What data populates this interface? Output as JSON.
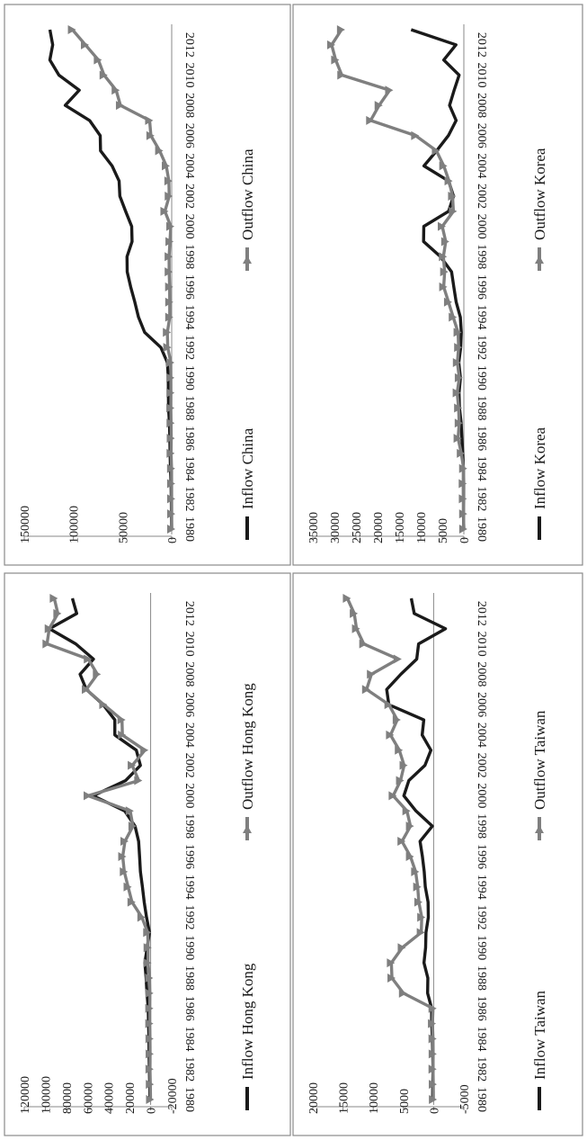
{
  "colors": {
    "inflow": "#1a1a1a",
    "outflow": "#7f7f7f",
    "frame": "#8a8a8a"
  },
  "chart_data": [
    {
      "id": "china",
      "type": "line",
      "rotation": "90deg clockwise (page viewed sideways)",
      "x": [
        "1980",
        "1981",
        "1982",
        "1983",
        "1984",
        "1985",
        "1986",
        "1987",
        "1988",
        "1989",
        "1990",
        "1991",
        "1992",
        "1993",
        "1994",
        "1995",
        "1996",
        "1997",
        "1998",
        "1999",
        "2000",
        "2001",
        "2002",
        "2003",
        "2004",
        "2005",
        "2006",
        "2007",
        "2008",
        "2009",
        "2010",
        "2011",
        "2012",
        "2013"
      ],
      "x_ticks": [
        "1980",
        "1982",
        "1984",
        "1986",
        "1988",
        "1990",
        "1992",
        "1994",
        "1996",
        "1998",
        "2000",
        "2002",
        "2004",
        "2006",
        "2008",
        "2010",
        "2012"
      ],
      "ylim": [
        0,
        150000
      ],
      "y_ticks": [
        "0",
        "50000",
        "100000",
        "150000"
      ],
      "series": [
        {
          "name": "Inflow China",
          "marker": "none",
          "values": [
            57,
            265,
            430,
            636,
            1258,
            1659,
            1875,
            2314,
            3194,
            3393,
            3487,
            4366,
            11008,
            27515,
            33767,
            37521,
            41726,
            45257,
            45463,
            40319,
            40715,
            46878,
            52743,
            53505,
            60630,
            72406,
            72715,
            83521,
            108312,
            94065,
            114734,
            123985,
            121080,
            123911
          ]
        },
        {
          "name": "Outflow China",
          "marker": "triangle",
          "values": [
            0,
            0,
            44,
            93,
            134,
            629,
            450,
            645,
            850,
            780,
            830,
            913,
            4000,
            4400,
            2000,
            2000,
            2114,
            2563,
            2634,
            1775,
            916,
            6885,
            2518,
            2855,
            5498,
            12261,
            21160,
            22469,
            52150,
            56530,
            68811,
            74654,
            87804,
            101000
          ]
        }
      ],
      "legend": {
        "placement": "bottom"
      }
    },
    {
      "id": "hong-kong",
      "type": "line",
      "rotation": "90deg clockwise (page viewed sideways)",
      "x": [
        "1980",
        "1981",
        "1982",
        "1983",
        "1984",
        "1985",
        "1986",
        "1987",
        "1988",
        "1989",
        "1990",
        "1991",
        "1992",
        "1993",
        "1994",
        "1995",
        "1996",
        "1997",
        "1998",
        "1999",
        "2000",
        "2001",
        "2002",
        "2003",
        "2004",
        "2005",
        "2006",
        "2007",
        "2008",
        "2009",
        "2010",
        "2011",
        "2012",
        "2013"
      ],
      "x_ticks": [
        "1980",
        "1982",
        "1984",
        "1986",
        "1988",
        "1990",
        "1992",
        "1994",
        "1996",
        "1998",
        "2000",
        "2002",
        "2004",
        "2006",
        "2008",
        "2010",
        "2012"
      ],
      "ylim": [
        -20000,
        120000
      ],
      "y_ticks": [
        "-20000",
        "0",
        "20000",
        "40000",
        "60000",
        "80000",
        "100000",
        "120000"
      ],
      "series": [
        {
          "name": "Inflow Hong Kong",
          "marker": "none",
          "values": [
            700,
            900,
            1200,
            1500,
            1600,
            2000,
            2300,
            3500,
            4300,
            5500,
            3300,
            1100,
            3900,
            6100,
            7800,
            9700,
            10500,
            11400,
            14800,
            24600,
            54600,
            23800,
            9700,
            13600,
            34000,
            34000,
            45100,
            61100,
            67000,
            54300,
            71100,
            96100,
            70200,
            74300
          ]
        },
        {
          "name": "Outflow Hong Kong",
          "marker": "triangle",
          "values": [
            80,
            300,
            600,
            500,
            600,
            800,
            800,
            700,
            1000,
            2500,
            2400,
            2800,
            8300,
            17700,
            21400,
            25000,
            26500,
            24400,
            16800,
            19400,
            59400,
            11300,
            17500,
            5500,
            26800,
            27200,
            44500,
            61100,
            50600,
            59200,
            98400,
            96300,
            88100,
            91500
          ]
        }
      ],
      "legend": {
        "placement": "bottom"
      }
    },
    {
      "id": "korea",
      "type": "line",
      "rotation": "90deg clockwise (page viewed sideways)",
      "x": [
        "1980",
        "1981",
        "1982",
        "1983",
        "1984",
        "1985",
        "1986",
        "1987",
        "1988",
        "1989",
        "1990",
        "1991",
        "1992",
        "1993",
        "1994",
        "1995",
        "1996",
        "1997",
        "1998",
        "1999",
        "2000",
        "2001",
        "2002",
        "2003",
        "2004",
        "2005",
        "2006",
        "2007",
        "2008",
        "2009",
        "2010",
        "2011",
        "2012",
        "2013"
      ],
      "x_ticks": [
        "1980",
        "1982",
        "1984",
        "1986",
        "1988",
        "1990",
        "1992",
        "1994",
        "1996",
        "1998",
        "2000",
        "2002",
        "2004",
        "2006",
        "2008",
        "2010",
        "2012"
      ],
      "ylim": [
        0,
        35000
      ],
      "y_ticks": [
        "0",
        "5000",
        "10000",
        "15000",
        "20000",
        "25000",
        "30000",
        "35000"
      ],
      "series": [
        {
          "name": "Inflow Korea",
          "marker": "none",
          "values": [
            6,
            102,
            69,
            69,
            110,
            234,
            460,
            616,
            1014,
            1118,
            789,
            1180,
            728,
            588,
            809,
            1776,
            2325,
            2844,
            5412,
            9333,
            9283,
            3528,
            2392,
            3526,
            9246,
            6309,
            3586,
            1784,
            3311,
            2249,
            1094,
            4661,
            1827,
            12221
          ]
        },
        {
          "name": "Outflow Korea",
          "marker": "triangle",
          "values": [
            26,
            48,
            120,
            152,
            49,
            591,
            1332,
            1075,
            1217,
            1542,
            1052,
            1500,
            1208,
            1340,
            2461,
            3552,
            4670,
            4449,
            4740,
            4198,
            4999,
            2420,
            2617,
            3426,
            4658,
            6366,
            11175,
            21607,
            19633,
            17197,
            28280,
            29705,
            30632,
            28360
          ]
        }
      ],
      "legend": {
        "placement": "bottom"
      }
    },
    {
      "id": "taiwan",
      "type": "line",
      "rotation": "90deg clockwise (page viewed sideways)",
      "x": [
        "1980",
        "1981",
        "1982",
        "1983",
        "1984",
        "1985",
        "1986",
        "1987",
        "1988",
        "1989",
        "1990",
        "1991",
        "1992",
        "1993",
        "1994",
        "1995",
        "1996",
        "1997",
        "1998",
        "1999",
        "2000",
        "2001",
        "2002",
        "2003",
        "2004",
        "2005",
        "2006",
        "2007",
        "2008",
        "2009",
        "2010",
        "2011",
        "2012",
        "2013"
      ],
      "x_ticks": [
        "1980",
        "1982",
        "1984",
        "1986",
        "1988",
        "1990",
        "1992",
        "1994",
        "1996",
        "1998",
        "2000",
        "2002",
        "2004",
        "2006",
        "2008",
        "2010",
        "2012"
      ],
      "ylim": [
        -5000,
        20000
      ],
      "y_ticks": [
        "-5000",
        "0",
        "5000",
        "10000",
        "15000",
        "20000"
      ],
      "series": [
        {
          "name": "Inflow Taiwan",
          "marker": "none",
          "values": [
            170,
            150,
            100,
            150,
            200,
            340,
            330,
            1000,
            960,
            1600,
            1330,
            1270,
            880,
            920,
            1380,
            1560,
            1860,
            2250,
            220,
            2930,
            4930,
            4110,
            1440,
            450,
            1900,
            1630,
            7420,
            7770,
            5430,
            2800,
            2490,
            -1960,
            3210,
            3700
          ]
        },
        {
          "name": "Outflow Taiwan",
          "marker": "triangle",
          "values": [
            40,
            60,
            100,
            80,
            100,
            200,
            100,
            5000,
            6900,
            7000,
            5200,
            2050,
            1970,
            2450,
            2640,
            2980,
            3840,
            5240,
            3840,
            4420,
            6700,
            5480,
            4890,
            5680,
            7140,
            6030,
            7400,
            11100,
            10300,
            5880,
            11570,
            12770,
            13140,
            14280
          ]
        }
      ],
      "legend": {
        "placement": "bottom"
      }
    }
  ]
}
